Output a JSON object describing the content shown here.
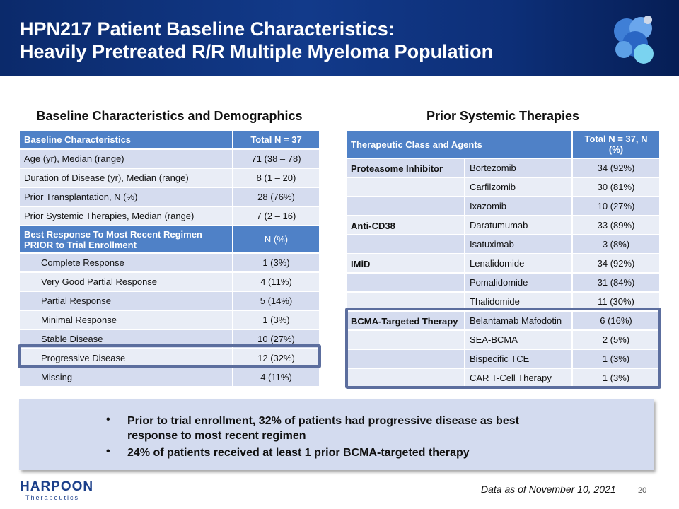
{
  "header": {
    "title_line1": "HPN217 Patient Baseline Characteristics:",
    "title_line2": "Heavily Pretreated R/R Multiple Myeloma Population"
  },
  "left": {
    "heading": "Baseline Characteristics and Demographics",
    "table": {
      "header": [
        "Baseline Characteristics",
        "Total N = 37"
      ],
      "rows": [
        [
          "Age (yr), Median (range)",
          "71 (38 – 78)"
        ],
        [
          "Duration of Disease (yr), Median (range)",
          "8 (1 – 20)"
        ],
        [
          "Prior Transplantation, N (%)",
          "28 (76%)"
        ],
        [
          "Prior Systemic Therapies, Median (range)",
          "7 (2 – 16)"
        ]
      ],
      "subheader": [
        "Best Response To Most Recent Regimen PRIOR to Trial Enrollment",
        "N (%)"
      ],
      "sub_rows": [
        [
          "Complete Response",
          "1 (3%)"
        ],
        [
          "Very Good Partial Response",
          "4 (11%)"
        ],
        [
          "Partial Response",
          "5 (14%)"
        ],
        [
          "Minimal Response",
          "1 (3%)"
        ],
        [
          "Stable Disease",
          "10 (27%)"
        ],
        [
          "Progressive Disease",
          "12 (32%)"
        ],
        [
          "Missing",
          "4 (11%)"
        ]
      ]
    }
  },
  "right": {
    "heading": "Prior Systemic Therapies",
    "table": {
      "header": [
        "Therapeutic Class and Agents",
        "Total N = 37, N (%)"
      ],
      "rows": [
        {
          "class": "Proteasome Inhibitor",
          "agent": "Bortezomib",
          "value": "34 (92%)"
        },
        {
          "agent": "Carfilzomib",
          "value": "30 (81%)"
        },
        {
          "agent": "Ixazomib",
          "value": "10 (27%)"
        },
        {
          "class": "Anti-CD38",
          "agent": "Daratumumab",
          "value": "33 (89%)"
        },
        {
          "agent": "Isatuximab",
          "value": "3 (8%)"
        },
        {
          "class": "IMiD",
          "agent": "Lenalidomide",
          "value": "34 (92%)"
        },
        {
          "agent": "Pomalidomide",
          "value": "31 (84%)"
        },
        {
          "agent": "Thalidomide",
          "value": "11 (30%)"
        },
        {
          "class": "BCMA-Targeted Therapy",
          "agent": "Belantamab Mafodotin",
          "value": "6 (16%)"
        },
        {
          "agent": "SEA-BCMA",
          "value": "2 (5%)"
        },
        {
          "agent": "Bispecific TCE",
          "value": "1 (3%)"
        },
        {
          "agent": "CAR T-Cell Therapy",
          "value": "1 (3%)"
        }
      ]
    }
  },
  "callout": {
    "bullets": [
      "Prior to trial enrollment, 32% of patients had progressive disease as best response to most recent regimen",
      "24% of patients received  at least 1 prior BCMA-targeted therapy"
    ]
  },
  "footer": {
    "logo_name": "HARPOON",
    "logo_sub": "Therapeutics",
    "note": "Data as of November 10, 2021",
    "page": "20"
  }
}
